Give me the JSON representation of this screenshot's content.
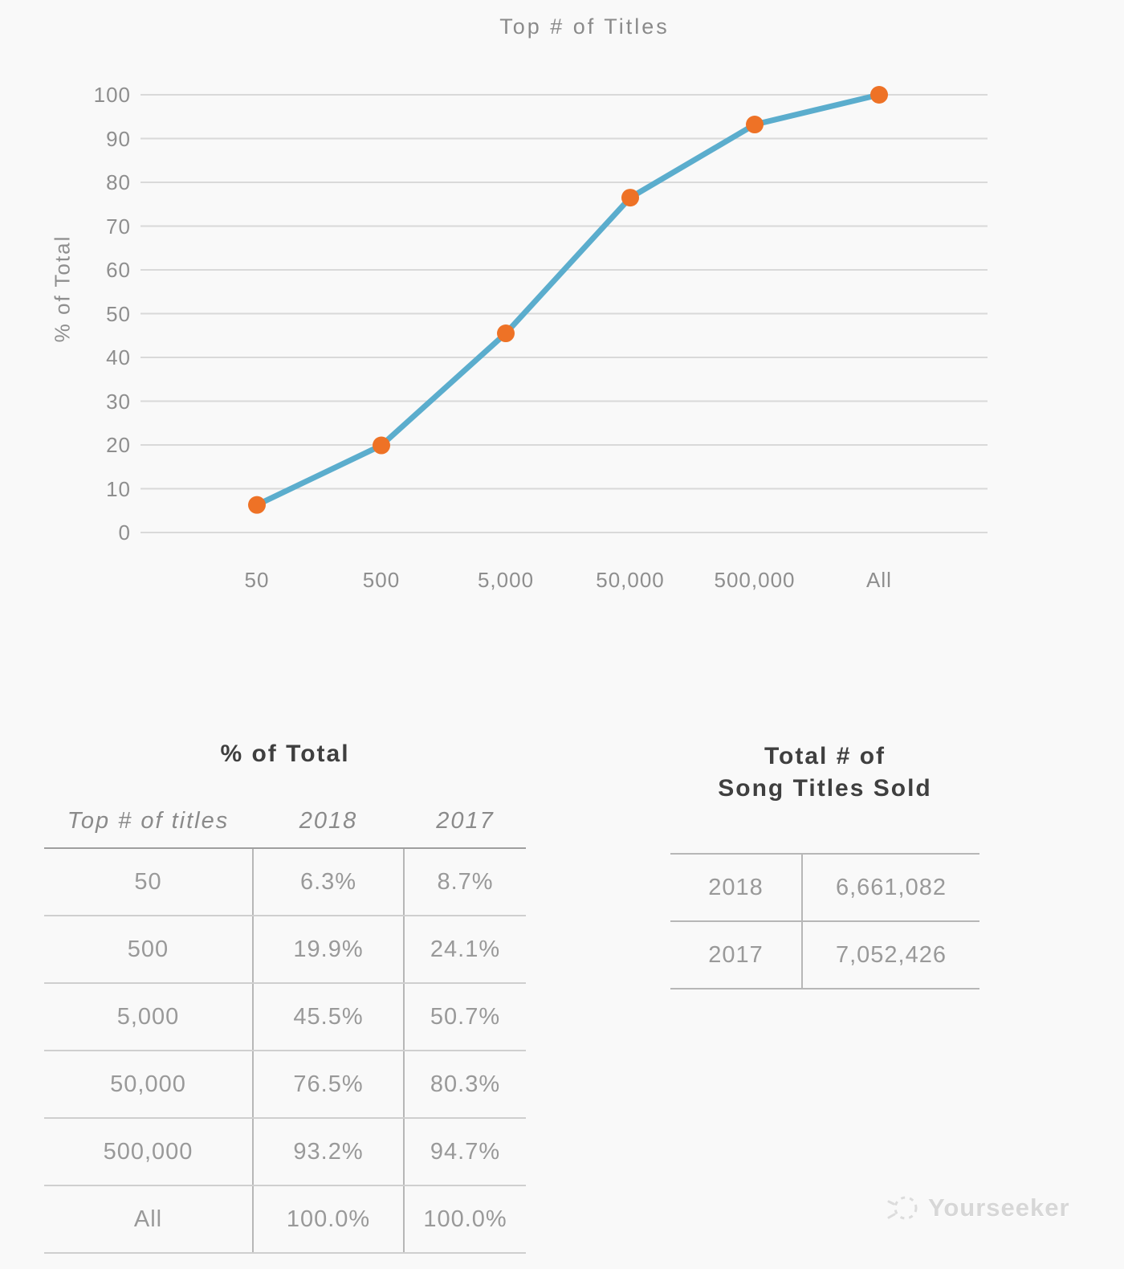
{
  "chart_data": {
    "type": "line",
    "title": "Top # of Titles",
    "categories": [
      "50",
      "500",
      "5,000",
      "50,000",
      "500,000",
      "All"
    ],
    "series": [
      {
        "name": "2018",
        "values": [
          6.3,
          19.9,
          45.5,
          76.5,
          93.2,
          100.0
        ]
      }
    ],
    "xlabel": "",
    "ylabel": "% of Total",
    "ylim": [
      0,
      100
    ],
    "yticks": [
      0,
      10,
      20,
      30,
      40,
      50,
      60,
      70,
      80,
      90,
      100
    ],
    "grid": true,
    "legend": false,
    "colors": {
      "line": "#5badcd",
      "marker": "#ee7226",
      "gridline": "#d9d9d9",
      "axis_text": "#8e8e8e"
    }
  },
  "tables": {
    "pct_of_total": {
      "title": "% of Total",
      "columns": [
        "Top # of titles",
        "2018",
        "2017"
      ],
      "rows": [
        [
          "50",
          "6.3%",
          "8.7%"
        ],
        [
          "500",
          "19.9%",
          "24.1%"
        ],
        [
          "5,000",
          "45.5%",
          "50.7%"
        ],
        [
          "50,000",
          "76.5%",
          "80.3%"
        ],
        [
          "500,000",
          "93.2%",
          "94.7%"
        ],
        [
          "All",
          "100.0%",
          "100.0%"
        ]
      ]
    },
    "totals": {
      "title_line1": "Total # of",
      "title_line2": "Song Titles Sold",
      "rows": [
        [
          "2018",
          "6,661,082"
        ],
        [
          "2017",
          "7,052,426"
        ]
      ]
    }
  },
  "watermark": {
    "label": "Yourseeker"
  }
}
